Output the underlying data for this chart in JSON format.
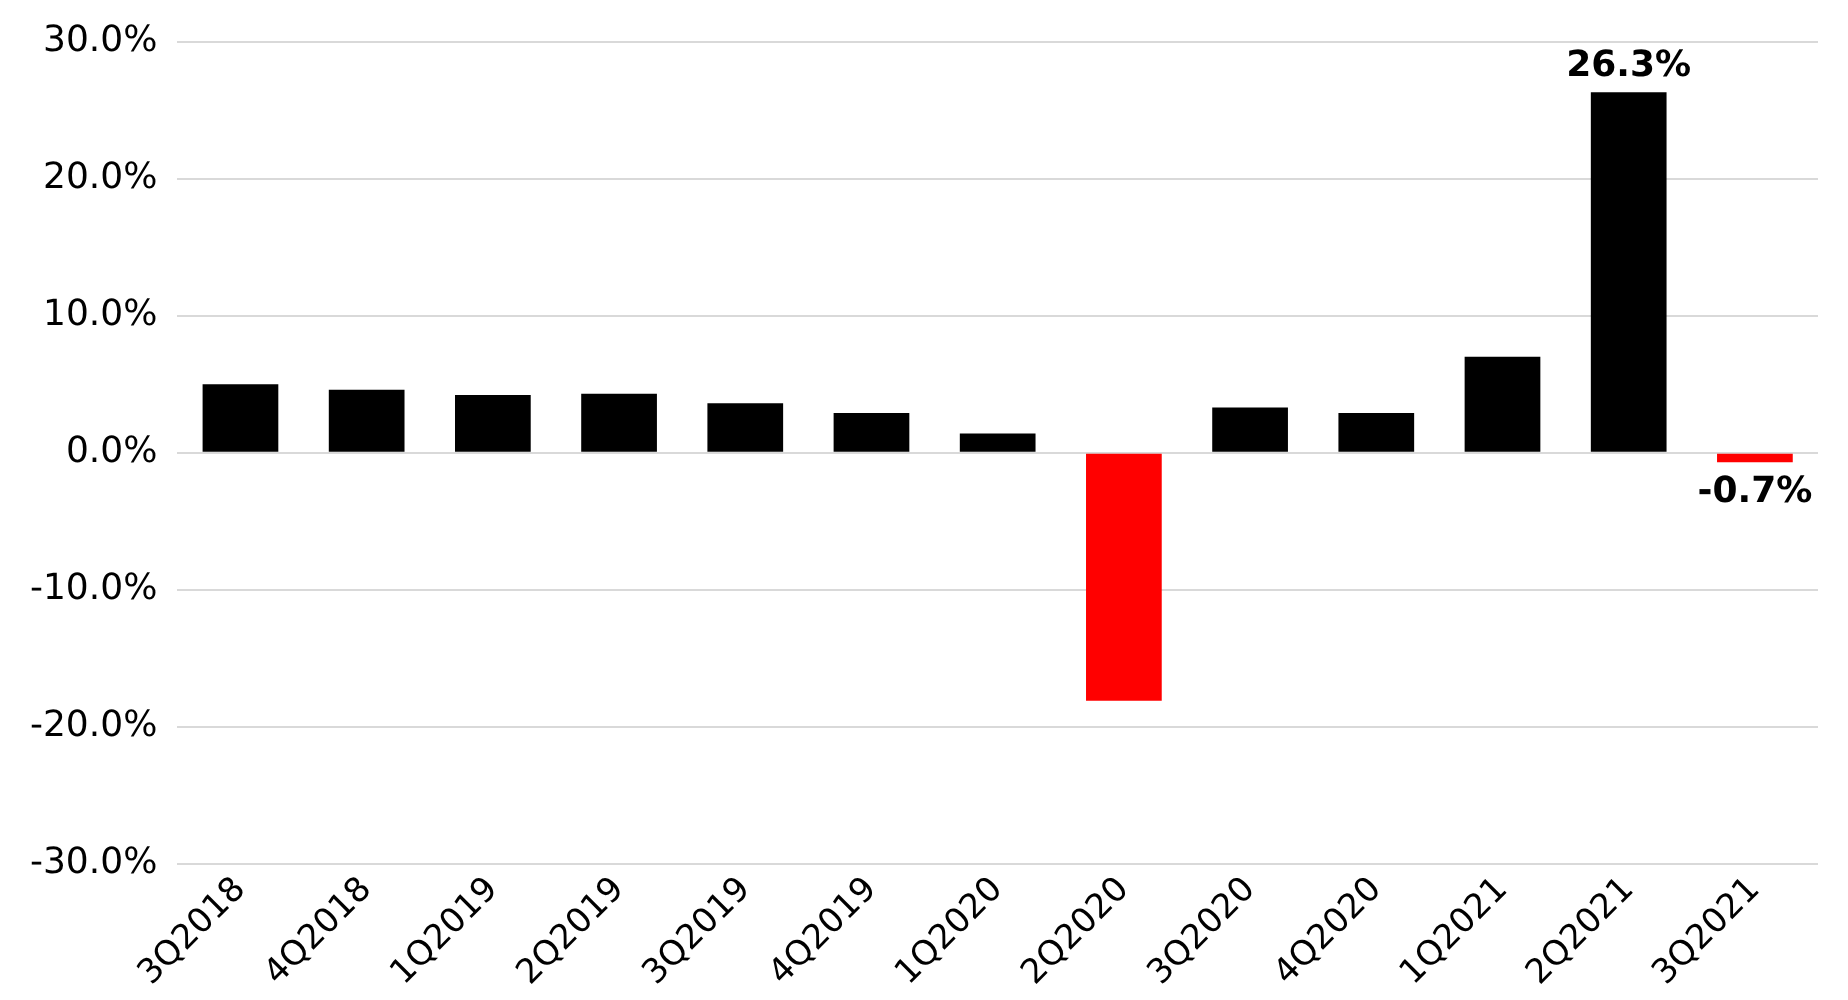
{
  "chart_data": {
    "type": "bar",
    "categories": [
      "3Q2018",
      "4Q2018",
      "1Q2019",
      "2Q2019",
      "3Q2019",
      "4Q2019",
      "1Q2020",
      "2Q2020",
      "3Q2020",
      "4Q2020",
      "1Q2021",
      "2Q2021",
      "3Q2021"
    ],
    "values": [
      5.0,
      4.6,
      4.2,
      4.3,
      3.6,
      2.9,
      1.4,
      -18.1,
      3.3,
      2.9,
      7.0,
      26.3,
      -0.7
    ],
    "colors": [
      "#000000",
      "#000000",
      "#000000",
      "#000000",
      "#000000",
      "#000000",
      "#000000",
      "#ff0000",
      "#000000",
      "#000000",
      "#000000",
      "#000000",
      "#ff0000"
    ],
    "value_labels": [
      null,
      null,
      null,
      null,
      null,
      null,
      null,
      null,
      null,
      null,
      null,
      "26.3%",
      "-0.7%"
    ],
    "ylim": [
      -30,
      30
    ],
    "yticks": [
      {
        "value": -30,
        "label": "-30.0%"
      },
      {
        "value": -20,
        "label": "-20.0%"
      },
      {
        "value": -10,
        "label": "-10.0%"
      },
      {
        "value": 0,
        "label": "0.0%"
      },
      {
        "value": 10,
        "label": "10.0%"
      },
      {
        "value": 20,
        "label": "20.0%"
      },
      {
        "value": 30,
        "label": "30.0%"
      }
    ],
    "grid": "y",
    "legend": false
  }
}
